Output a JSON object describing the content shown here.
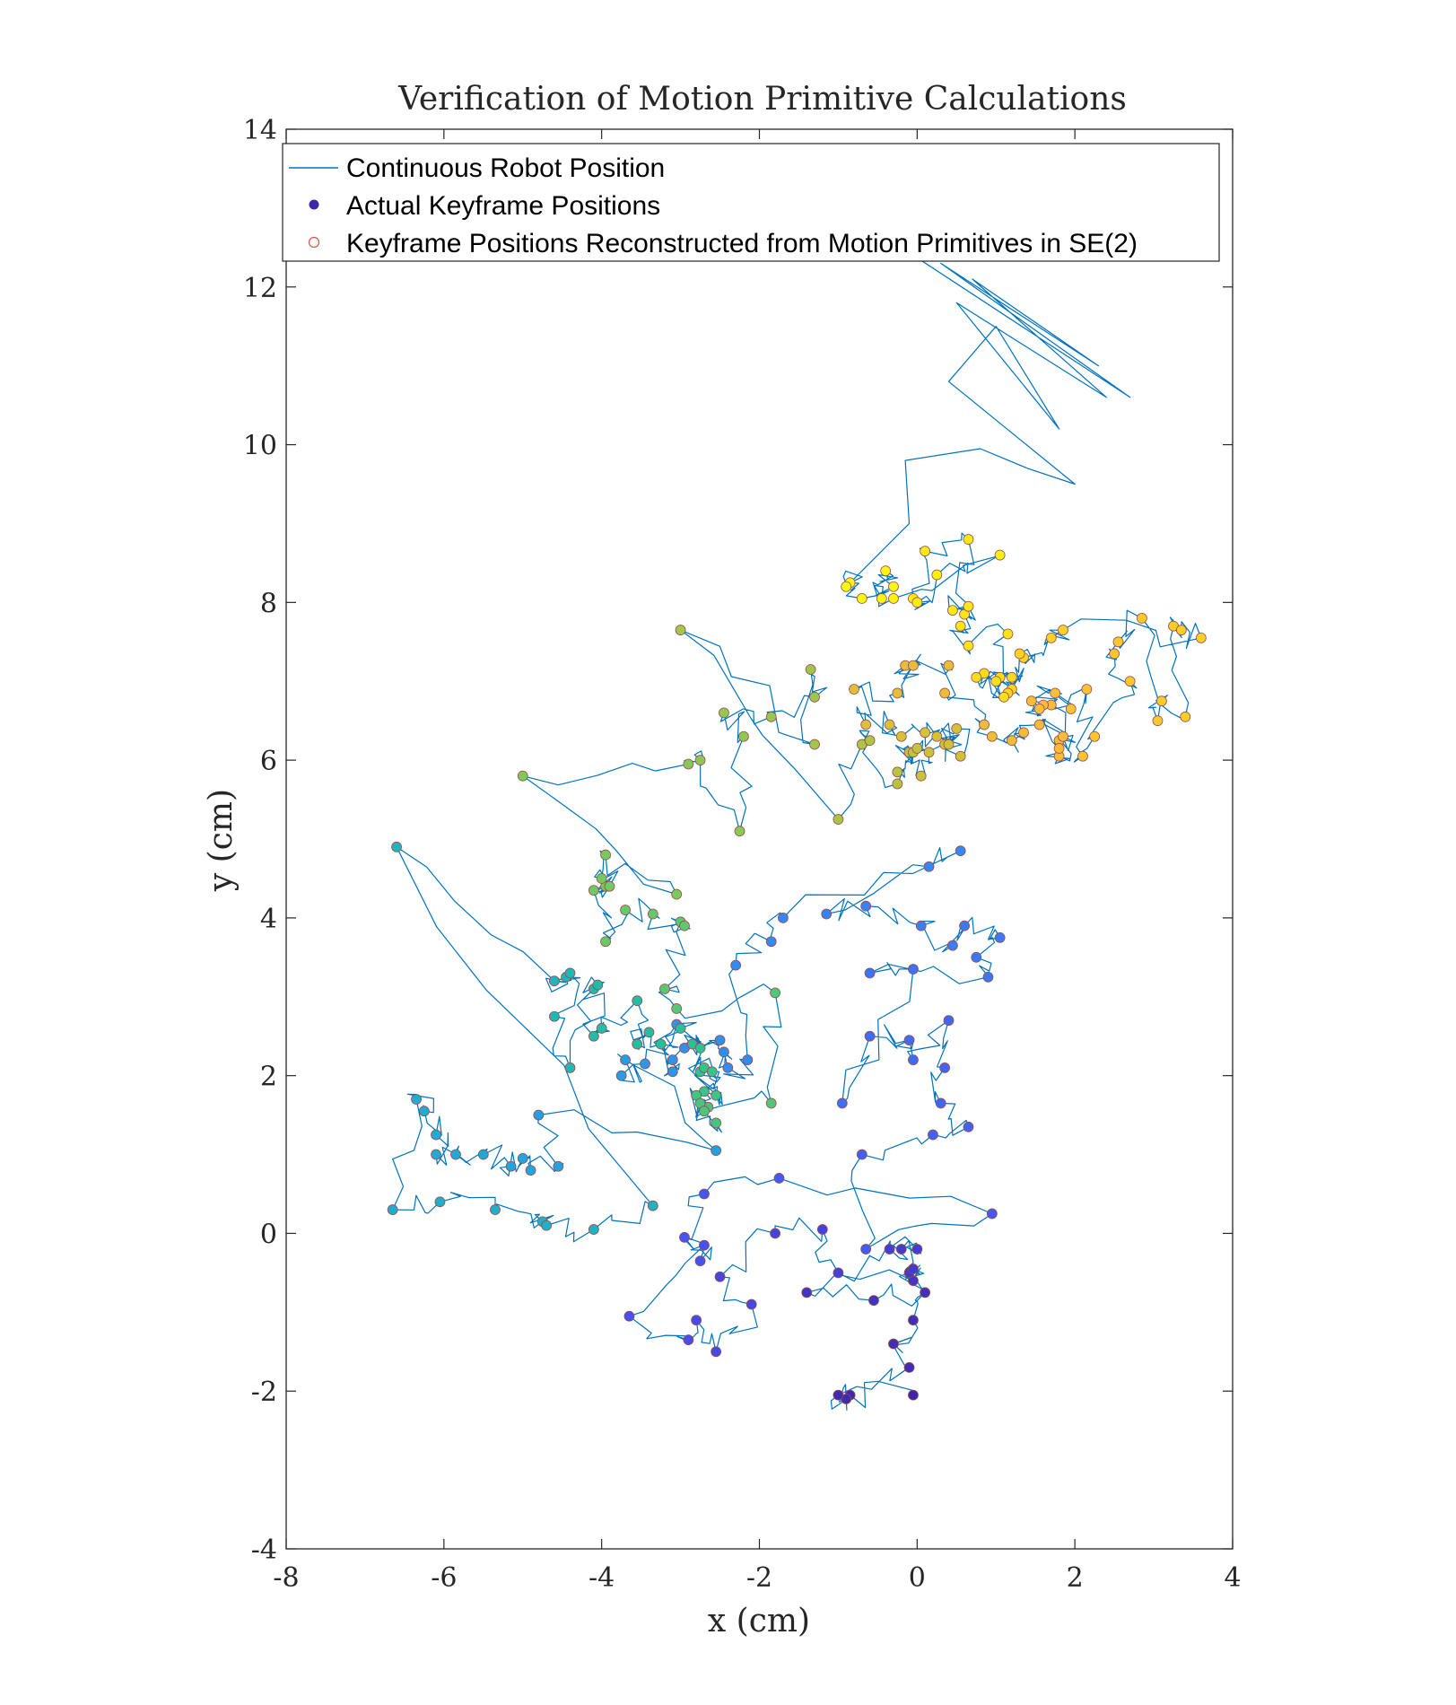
{
  "chart_data": {
    "type": "scatter",
    "title": "Verification of Motion Primitive Calculations",
    "xlabel": "x (cm)",
    "ylabel": "y (cm)",
    "xlim": [
      -8,
      4
    ],
    "ylim": [
      -4,
      14
    ],
    "xticks": [
      -8,
      -6,
      -4,
      -2,
      0,
      2,
      4
    ],
    "yticks": [
      -4,
      -2,
      0,
      2,
      4,
      6,
      8,
      10,
      12,
      14
    ],
    "grid": false,
    "legend_position": "top",
    "colors": {
      "line": "#0072BD",
      "marker_legend": "#3d26a8",
      "reconstructed": "#d9534f",
      "colormap": [
        "#3e26a8",
        "#4750f0",
        "#3a80f8",
        "#1fa8db",
        "#21c0a0",
        "#6fca62",
        "#c8c33b",
        "#fcba3d",
        "#f9d81f",
        "#f9fb0e"
      ]
    },
    "series": [
      {
        "name": "Continuous Robot Position",
        "kind": "line"
      },
      {
        "name": "Actual Keyframe Positions",
        "kind": "marker-filled"
      },
      {
        "name": "Keyframe Positions Reconstructed from Motion Primitives in SE(2)",
        "kind": "marker-open"
      }
    ],
    "keyframes": [
      [
        -0.05,
        -2.05,
        0.0
      ],
      [
        -0.85,
        -2.05,
        0.01
      ],
      [
        -0.9,
        -2.1,
        0.02
      ],
      [
        -1.0,
        -2.05,
        0.03
      ],
      [
        -0.1,
        -1.7,
        0.04
      ],
      [
        -0.3,
        -1.4,
        0.05
      ],
      [
        -0.05,
        -1.1,
        0.06
      ],
      [
        0.1,
        -0.75,
        0.07
      ],
      [
        -0.55,
        -0.85,
        0.08
      ],
      [
        -1.4,
        -0.75,
        0.09
      ],
      [
        -0.05,
        -0.6,
        0.1
      ],
      [
        -0.1,
        -0.5,
        0.11
      ],
      [
        -0.05,
        -0.45,
        0.12
      ],
      [
        -0.2,
        -0.2,
        0.13
      ],
      [
        0.0,
        -0.2,
        0.14
      ],
      [
        -0.35,
        -0.2,
        0.15
      ],
      [
        -1.0,
        -0.5,
        0.16
      ],
      [
        -1.2,
        0.05,
        0.17
      ],
      [
        -1.8,
        0.0,
        0.18
      ],
      [
        -2.5,
        -0.55,
        0.19
      ],
      [
        -2.1,
        -0.9,
        0.2
      ],
      [
        -2.55,
        -1.5,
        0.21
      ],
      [
        -2.8,
        -1.1,
        0.22
      ],
      [
        -2.9,
        -1.35,
        0.23
      ],
      [
        -3.65,
        -1.05,
        0.24
      ],
      [
        -2.7,
        -0.15,
        0.25
      ],
      [
        -2.75,
        -0.35,
        0.26
      ],
      [
        -2.95,
        -0.05,
        0.27
      ],
      [
        -2.7,
        0.5,
        0.28
      ],
      [
        -1.75,
        0.7,
        0.29
      ],
      [
        0.95,
        0.25,
        0.3
      ],
      [
        -0.65,
        -0.2,
        0.31
      ],
      [
        -0.7,
        1.0,
        0.32
      ],
      [
        0.2,
        1.25,
        0.33
      ],
      [
        0.65,
        1.35,
        0.34
      ],
      [
        0.3,
        1.65,
        0.35
      ],
      [
        0.35,
        2.1,
        0.36
      ],
      [
        0.4,
        2.7,
        0.37
      ],
      [
        -0.05,
        2.2,
        0.38
      ],
      [
        -0.1,
        2.45,
        0.39
      ],
      [
        -0.6,
        2.5,
        0.4
      ],
      [
        -0.95,
        1.65,
        0.41
      ],
      [
        -0.05,
        3.35,
        0.42
      ],
      [
        -0.6,
        3.3,
        0.43
      ],
      [
        0.9,
        3.25,
        0.44
      ],
      [
        0.75,
        3.5,
        0.45
      ],
      [
        1.05,
        3.75,
        0.46
      ],
      [
        0.6,
        3.9,
        0.47
      ],
      [
        0.45,
        3.65,
        0.48
      ],
      [
        0.05,
        3.9,
        0.49
      ],
      [
        -0.65,
        4.15,
        0.5
      ],
      [
        -1.15,
        4.05,
        0.51
      ],
      [
        0.15,
        4.65,
        0.52
      ],
      [
        0.55,
        4.85,
        0.53
      ],
      [
        -1.7,
        4.0,
        0.54
      ],
      [
        -1.85,
        3.7,
        0.55
      ],
      [
        -2.3,
        3.4,
        0.56
      ],
      [
        -2.15,
        2.2,
        0.57
      ],
      [
        -2.4,
        2.1,
        0.58
      ],
      [
        -2.45,
        2.3,
        0.59
      ],
      [
        -2.5,
        2.45,
        0.6
      ],
      [
        -2.95,
        2.35,
        0.61
      ],
      [
        -3.1,
        2.2,
        0.62
      ],
      [
        -3.1,
        2.05,
        0.63
      ],
      [
        -3.05,
        2.65,
        0.64
      ],
      [
        -3.45,
        2.15,
        0.65
      ],
      [
        -3.75,
        2.0,
        0.66
      ],
      [
        -3.7,
        2.2,
        0.67
      ],
      [
        -2.55,
        1.05,
        0.68
      ],
      [
        -4.8,
        1.5,
        0.69
      ],
      [
        -4.55,
        0.85,
        0.7
      ],
      [
        -4.9,
        0.8,
        0.71
      ],
      [
        -5.0,
        0.95,
        0.72
      ],
      [
        -5.15,
        0.85,
        0.73
      ],
      [
        -5.5,
        1.0,
        0.74
      ],
      [
        -5.85,
        1.0,
        0.75
      ],
      [
        -6.1,
        1.0,
        0.76
      ],
      [
        -6.1,
        1.25,
        0.77
      ],
      [
        -6.25,
        1.55,
        0.78
      ],
      [
        -6.35,
        1.7,
        0.79
      ],
      [
        -6.65,
        0.3,
        0.8
      ],
      [
        -6.05,
        0.4,
        0.81
      ],
      [
        -5.35,
        0.3,
        0.82
      ],
      [
        -4.75,
        0.15,
        0.83
      ],
      [
        -4.7,
        0.1,
        0.84
      ],
      [
        -4.1,
        0.05,
        0.85
      ],
      [
        -3.35,
        0.35,
        0.86
      ],
      [
        -6.6,
        4.9,
        0.87
      ],
      [
        -4.6,
        3.2,
        0.88
      ],
      [
        -4.45,
        3.25,
        0.89
      ],
      [
        -4.4,
        3.3,
        0.9
      ],
      [
        -4.6,
        2.75,
        0.91
      ],
      [
        -4.4,
        2.1,
        0.92
      ],
      [
        -4.1,
        3.1,
        0.93
      ],
      [
        -4.05,
        3.15,
        0.94
      ],
      [
        -4.1,
        2.5,
        0.95
      ],
      [
        -4.0,
        2.6,
        0.96
      ],
      [
        -3.55,
        2.95,
        0.97
      ],
      [
        -3.4,
        2.55,
        0.98
      ],
      [
        -3.55,
        2.4,
        0.99
      ],
      [
        -3.25,
        2.4,
        1.0
      ],
      [
        -3.0,
        2.6,
        1.01
      ],
      [
        -2.85,
        2.4,
        1.02
      ],
      [
        -2.75,
        2.35,
        1.03
      ],
      [
        -2.75,
        2.05,
        1.04
      ],
      [
        -2.7,
        2.1,
        1.05
      ],
      [
        -2.6,
        2.05,
        1.06
      ],
      [
        -2.7,
        1.8,
        1.07
      ],
      [
        -2.55,
        1.75,
        1.08
      ],
      [
        -2.8,
        1.75,
        1.09
      ],
      [
        -2.65,
        1.6,
        1.1
      ],
      [
        -2.55,
        1.4,
        1.11
      ],
      [
        -2.75,
        1.65,
        1.12
      ],
      [
        -2.7,
        1.55,
        1.13
      ],
      [
        -1.85,
        1.65,
        1.14
      ],
      [
        -1.8,
        3.05,
        1.15
      ],
      [
        -3.05,
        2.85,
        1.16
      ],
      [
        -3.2,
        3.1,
        1.17
      ],
      [
        -3.0,
        3.95,
        1.18
      ],
      [
        -2.95,
        3.9,
        1.19
      ],
      [
        -3.35,
        4.05,
        1.2
      ],
      [
        -3.7,
        4.1,
        1.21
      ],
      [
        -3.95,
        3.7,
        1.22
      ],
      [
        -4.1,
        4.35,
        1.23
      ],
      [
        -3.95,
        4.4,
        1.24
      ],
      [
        -3.9,
        4.4,
        1.25
      ],
      [
        -4.0,
        4.5,
        1.26
      ],
      [
        -3.95,
        4.8,
        1.27
      ],
      [
        -3.05,
        4.3,
        1.28
      ],
      [
        -5.0,
        5.8,
        1.29
      ],
      [
        -2.9,
        5.95,
        1.3
      ],
      [
        -2.75,
        6.0,
        1.31
      ],
      [
        -2.25,
        5.1,
        1.32
      ],
      [
        -2.2,
        6.3,
        1.33
      ],
      [
        -2.45,
        6.6,
        1.34
      ],
      [
        -1.85,
        6.55,
        1.35
      ],
      [
        -1.3,
        6.8,
        1.36
      ],
      [
        -1.35,
        7.15,
        1.37
      ],
      [
        -1.3,
        6.2,
        1.38
      ],
      [
        -3.0,
        7.65,
        1.39
      ],
      [
        -1.0,
        5.25,
        1.4
      ],
      [
        -0.7,
        6.2,
        1.41
      ],
      [
        -0.6,
        6.25,
        1.42
      ],
      [
        -0.25,
        5.7,
        1.43
      ],
      [
        -0.25,
        5.85,
        1.44
      ],
      [
        -0.1,
        6.1,
        1.45
      ],
      [
        -0.05,
        6.1,
        1.46
      ],
      [
        0.0,
        6.15,
        1.47
      ],
      [
        0.05,
        5.8,
        1.48
      ],
      [
        0.15,
        6.1,
        1.49
      ],
      [
        0.35,
        6.2,
        1.5
      ],
      [
        0.4,
        6.2,
        1.51
      ],
      [
        0.55,
        6.05,
        1.52
      ],
      [
        0.5,
        6.4,
        1.53
      ],
      [
        0.25,
        6.3,
        1.54
      ],
      [
        0.1,
        6.35,
        1.55
      ],
      [
        -0.2,
        6.3,
        1.56
      ],
      [
        -0.35,
        6.45,
        1.57
      ],
      [
        -0.65,
        6.45,
        1.58
      ],
      [
        -0.8,
        6.9,
        1.59
      ],
      [
        -0.25,
        6.85,
        1.6
      ],
      [
        -0.15,
        7.2,
        1.61
      ],
      [
        -0.05,
        7.2,
        1.62
      ],
      [
        0.4,
        7.2,
        1.63
      ],
      [
        0.35,
        6.85,
        1.64
      ],
      [
        0.85,
        6.45,
        1.65
      ],
      [
        0.95,
        6.3,
        1.66
      ],
      [
        1.2,
        6.25,
        1.67
      ],
      [
        1.35,
        6.35,
        1.68
      ],
      [
        1.55,
        6.45,
        1.69
      ],
      [
        1.8,
        6.25,
        1.7
      ],
      [
        1.85,
        6.3,
        1.71
      ],
      [
        1.8,
        6.05,
        1.72
      ],
      [
        1.8,
        6.15,
        1.73
      ],
      [
        1.7,
        6.7,
        1.74
      ],
      [
        1.6,
        6.7,
        1.75
      ],
      [
        1.55,
        6.65,
        1.76
      ],
      [
        1.45,
        6.75,
        1.77
      ],
      [
        1.75,
        6.85,
        1.78
      ],
      [
        1.95,
        6.65,
        1.79
      ],
      [
        2.15,
        6.9,
        1.8
      ],
      [
        2.1,
        6.05,
        1.81
      ],
      [
        2.25,
        6.3,
        1.82
      ],
      [
        2.7,
        7.0,
        1.83
      ],
      [
        2.5,
        7.35,
        1.84
      ],
      [
        2.55,
        7.5,
        1.85
      ],
      [
        2.85,
        7.8,
        1.86
      ],
      [
        3.05,
        6.5,
        1.87
      ],
      [
        3.1,
        6.75,
        1.88
      ],
      [
        3.4,
        6.55,
        1.89
      ],
      [
        3.25,
        7.7,
        1.9
      ],
      [
        3.35,
        7.65,
        1.91
      ],
      [
        3.6,
        7.55,
        1.92
      ],
      [
        1.85,
        7.65,
        1.93
      ],
      [
        1.7,
        7.55,
        1.94
      ],
      [
        1.35,
        7.3,
        1.95
      ],
      [
        1.3,
        7.35,
        1.96
      ],
      [
        1.2,
        6.9,
        1.97
      ],
      [
        1.15,
        6.85,
        1.98
      ],
      [
        1.2,
        7.05,
        1.99
      ],
      [
        1.05,
        7.05,
        2.0
      ],
      [
        0.85,
        7.1,
        2.01
      ],
      [
        0.75,
        7.05,
        2.02
      ],
      [
        1.0,
        7.0,
        2.03
      ],
      [
        1.1,
        6.8,
        2.04
      ],
      [
        1.15,
        7.6,
        2.05
      ],
      [
        0.65,
        7.45,
        2.06
      ],
      [
        0.55,
        7.7,
        2.07
      ],
      [
        0.6,
        7.85,
        2.08
      ],
      [
        0.65,
        7.95,
        2.09
      ],
      [
        0.45,
        7.9,
        2.1
      ],
      [
        0.65,
        8.8,
        2.11
      ],
      [
        0.1,
        8.65,
        2.12
      ],
      [
        -0.05,
        8.05,
        2.13
      ],
      [
        0.0,
        8.0,
        2.14
      ],
      [
        0.25,
        8.35,
        2.15
      ],
      [
        1.05,
        8.6,
        2.16
      ],
      [
        -0.3,
        8.05,
        2.17
      ],
      [
        -0.45,
        8.05,
        2.18
      ],
      [
        -0.4,
        8.4,
        2.19
      ],
      [
        -0.3,
        8.2,
        2.2
      ],
      [
        -0.7,
        8.05,
        2.21
      ],
      [
        -0.85,
        8.25,
        2.22
      ],
      [
        -0.9,
        8.2,
        2.23
      ]
    ]
  }
}
